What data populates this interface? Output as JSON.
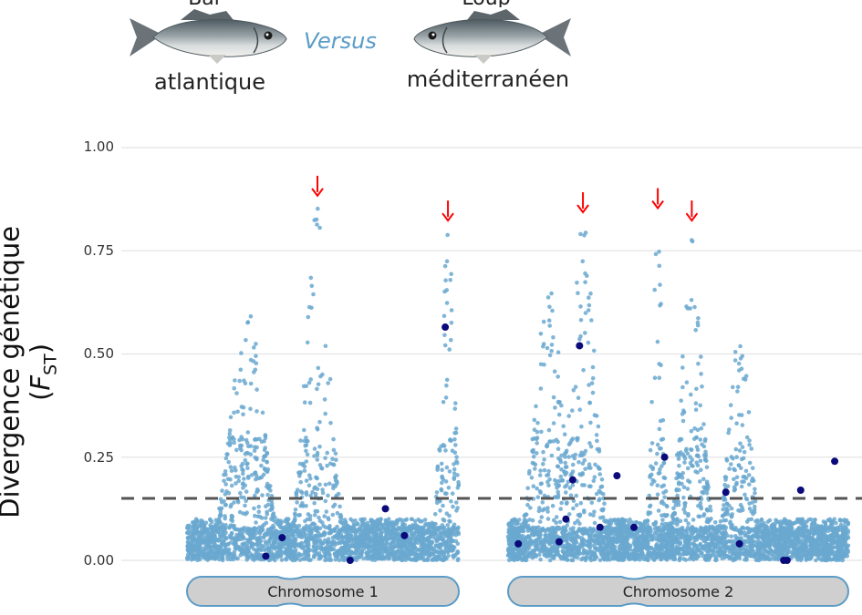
{
  "header": {
    "left_fish_label": "atlantique",
    "left_fish_cut_label": "Bar",
    "right_fish_label": "méditerranéen",
    "right_fish_cut_label": "Loup",
    "versus": "Versus",
    "left_fish_icon": "sea-bass-fish-icon",
    "right_fish_icon": "sea-bass-fish-icon"
  },
  "colors": {
    "points": "#6aa8d0",
    "highlight": "#0a0a7a",
    "threshold": "#555555",
    "arrow": "#ff0000",
    "chromosome_fill": "#cfcfcf",
    "chromosome_stroke": "#5b9cc7"
  },
  "chart_data": {
    "type": "scatter",
    "ylabel_main": "Divergence génétique (",
    "ylabel_symbol": "F",
    "ylabel_sub": "ST",
    "ylabel_close": ")",
    "ylim": [
      0,
      1
    ],
    "yticks": [
      "0.00",
      "0.25",
      "0.50",
      "0.75",
      "1.00"
    ],
    "ytick_values": [
      0,
      0.25,
      0.5,
      0.75,
      1.0
    ],
    "grid": true,
    "threshold": 0.15,
    "chromosomes": [
      {
        "label": "Chromosome 1",
        "peaks": [
          {
            "pos": 0.48,
            "height": 0.87,
            "width": 0.09,
            "arrow": true
          },
          {
            "pos": 0.96,
            "height": 0.81,
            "width": 0.05,
            "arrow": true
          },
          {
            "pos": 0.22,
            "height": 0.62,
            "width": 0.12,
            "arrow": false
          }
        ],
        "highlight_points": [
          {
            "pos": 0.29,
            "fst": 0.01
          },
          {
            "pos": 0.35,
            "fst": 0.055
          },
          {
            "pos": 0.6,
            "fst": 0.0
          },
          {
            "pos": 0.73,
            "fst": 0.125
          },
          {
            "pos": 0.8,
            "fst": 0.06
          },
          {
            "pos": 0.95,
            "fst": 0.565
          }
        ]
      },
      {
        "label": "Chromosome 2",
        "peaks": [
          {
            "pos": 0.22,
            "height": 0.83,
            "width": 0.07,
            "arrow": true
          },
          {
            "pos": 0.44,
            "height": 0.84,
            "width": 0.03,
            "arrow": true
          },
          {
            "pos": 0.54,
            "height": 0.81,
            "width": 0.06,
            "arrow": true
          },
          {
            "pos": 0.12,
            "height": 0.67,
            "width": 0.08,
            "arrow": false
          },
          {
            "pos": 0.68,
            "height": 0.6,
            "width": 0.06,
            "arrow": false
          }
        ],
        "highlight_points": [
          {
            "pos": 0.03,
            "fst": 0.04
          },
          {
            "pos": 0.15,
            "fst": 0.045
          },
          {
            "pos": 0.17,
            "fst": 0.1
          },
          {
            "pos": 0.19,
            "fst": 0.195
          },
          {
            "pos": 0.21,
            "fst": 0.52
          },
          {
            "pos": 0.27,
            "fst": 0.08
          },
          {
            "pos": 0.32,
            "fst": 0.205
          },
          {
            "pos": 0.37,
            "fst": 0.08
          },
          {
            "pos": 0.46,
            "fst": 0.25
          },
          {
            "pos": 0.64,
            "fst": 0.165
          },
          {
            "pos": 0.68,
            "fst": 0.04
          },
          {
            "pos": 0.81,
            "fst": 0.0
          },
          {
            "pos": 0.82,
            "fst": 0.0
          },
          {
            "pos": 0.86,
            "fst": 0.17
          },
          {
            "pos": 0.96,
            "fst": 0.24
          }
        ]
      }
    ]
  }
}
